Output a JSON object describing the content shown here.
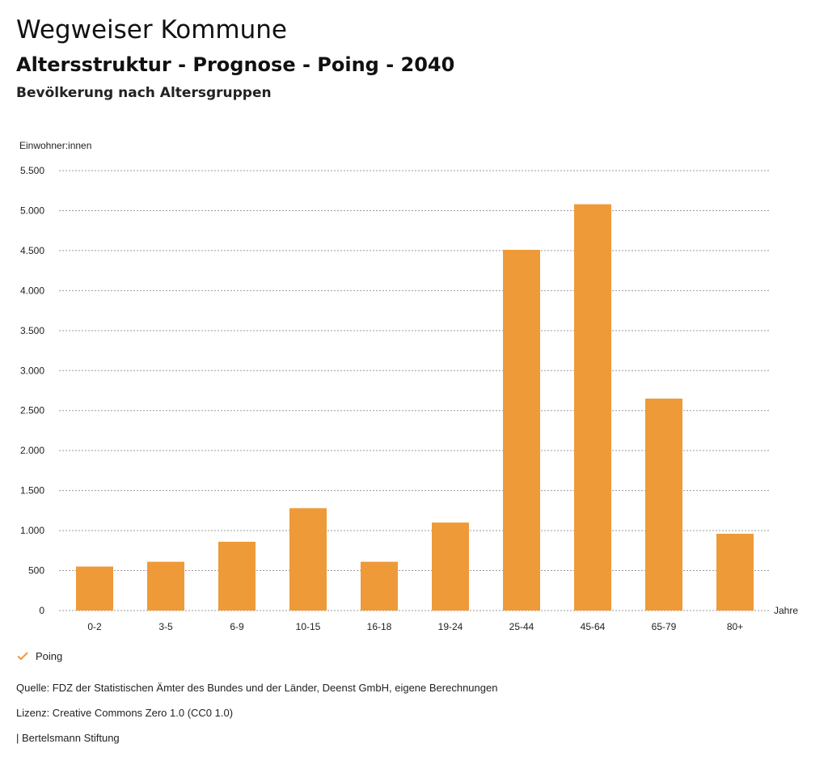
{
  "header": {
    "title": "Wegweiser Kommune",
    "subtitle": "Altersstruktur - Prognose - Poing - 2040",
    "subsubtitle": "Bevölkerung nach Altersgruppen"
  },
  "chart_data": {
    "type": "bar",
    "ylabel": "Einwohner:innen",
    "xlabel": "Jahre",
    "categories": [
      "0-2",
      "3-5",
      "6-9",
      "10-15",
      "16-18",
      "19-24",
      "25-44",
      "45-64",
      "65-79",
      "80+"
    ],
    "series": [
      {
        "name": "Poing",
        "values": [
          550,
          610,
          860,
          1280,
          610,
          1100,
          4510,
          5080,
          2650,
          960
        ]
      }
    ],
    "ylim": [
      0,
      5500
    ],
    "yticks": [
      0,
      500,
      1000,
      1500,
      2000,
      2500,
      3000,
      3500,
      4000,
      4500,
      5000,
      5500
    ],
    "ytick_labels": [
      "0",
      "500",
      "1.000",
      "1.500",
      "2.000",
      "2.500",
      "3.000",
      "3.500",
      "4.000",
      "4.500",
      "5.000",
      "5.500"
    ],
    "grid": true,
    "legend_position": "bottom-left",
    "bar_color": "#ee9a38"
  },
  "legend": {
    "label": "Poing",
    "icon": "check-icon",
    "color": "#ee9a38"
  },
  "footer": {
    "source": "Quelle: FDZ der Statistischen Ämter des Bundes und der Länder, Deenst GmbH, eigene Berechnungen",
    "license": "Lizenz: Creative Commons Zero 1.0 (CC0 1.0)",
    "publisher": "| Bertelsmann Stiftung"
  }
}
